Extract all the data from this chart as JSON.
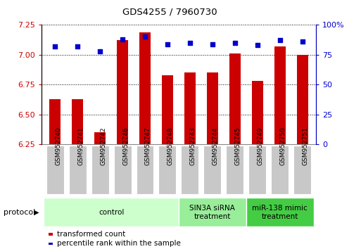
{
  "title": "GDS4255 / 7960730",
  "samples": [
    "GSM952740",
    "GSM952741",
    "GSM952742",
    "GSM952746",
    "GSM952747",
    "GSM952748",
    "GSM952743",
    "GSM952744",
    "GSM952745",
    "GSM952749",
    "GSM952750",
    "GSM952751"
  ],
  "bar_values": [
    6.63,
    6.63,
    6.35,
    7.12,
    7.19,
    6.83,
    6.85,
    6.85,
    7.01,
    6.78,
    7.07,
    7.0
  ],
  "dot_values": [
    82,
    82,
    78,
    88,
    90,
    84,
    85,
    84,
    85,
    83,
    87,
    86
  ],
  "ylim_left": [
    6.25,
    7.25
  ],
  "ylim_right": [
    0,
    100
  ],
  "yticks_left": [
    6.25,
    6.5,
    6.75,
    7.0,
    7.25
  ],
  "yticks_right": [
    0,
    25,
    50,
    75,
    100
  ],
  "bar_color": "#cc0000",
  "dot_color": "#0000cc",
  "bar_width": 0.5,
  "group_defs": [
    [
      0,
      6,
      "#ccffcc",
      "control"
    ],
    [
      6,
      9,
      "#99ee99",
      "SIN3A siRNA\ntreatment"
    ],
    [
      9,
      12,
      "#44cc44",
      "miR-138 mimic\ntreatment"
    ]
  ],
  "legend_bar_label": "transformed count",
  "legend_dot_label": "percentile rank within the sample",
  "protocol_label": "protocol",
  "bar_axis_color": "#cc0000",
  "dot_axis_color": "#0000cc",
  "xtick_bg_color": "#c8c8c8",
  "right_tick_labels": [
    "0",
    "25",
    "50",
    "75",
    "100%"
  ]
}
